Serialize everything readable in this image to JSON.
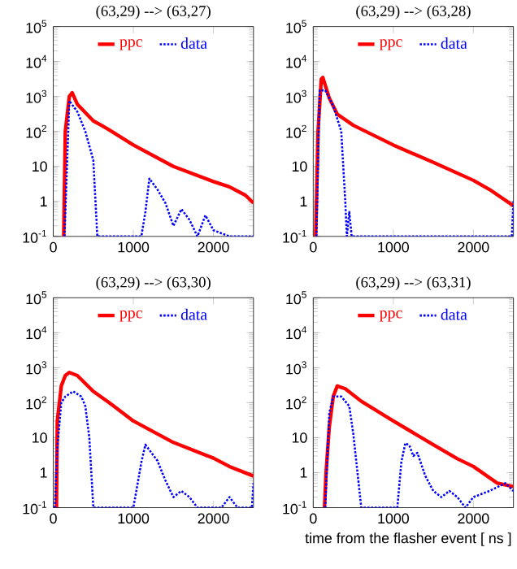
{
  "chart_data": [
    {
      "type": "line",
      "title": "(63,29) --> (63,27)",
      "log": "y",
      "legend": "top",
      "xlim": [
        0,
        2500
      ],
      "ylim": [
        0.1,
        100000
      ],
      "xticks": [
        0,
        1000,
        2000
      ],
      "yticks": [
        {
          "value": 0.1,
          "label": "10$^{-1}$"
        },
        1,
        10,
        {
          "value": 100,
          "label": "10$^{2}$"
        },
        {
          "value": 1000,
          "label": "10$^{3}$"
        },
        {
          "value": 10000,
          "label": "10$^{4}$"
        },
        {
          "value": 100000,
          "label": "10$^{5}$"
        }
      ],
      "series": [
        {
          "name": "ppc",
          "color": "#ff0000",
          "line_style": "solid",
          "x": [
            130,
            150,
            200,
            236,
            300,
            500,
            600,
            700,
            1000,
            1500,
            2000,
            2200,
            2400,
            2500
          ],
          "values": [
            0.1,
            100,
            1000,
            1280,
            600,
            200,
            150,
            110,
            41,
            10,
            3.7,
            2.6,
            1.5,
            0.9
          ]
        },
        {
          "name": "data",
          "color": "#0000ff",
          "line_style": "dotted",
          "x": [
            140,
            200,
            300,
            400,
            500,
            550,
            1100,
            1150,
            1200,
            1300,
            1400,
            1500,
            1600,
            1700,
            1800,
            1900,
            2000,
            2200,
            2500
          ],
          "values": [
            0.1,
            750,
            370,
            100,
            15,
            0.1,
            0.1,
            0.5,
            4.5,
            2.2,
            0.9,
            0.2,
            0.6,
            0.3,
            0.1,
            0.4,
            0.15,
            0.1,
            0.1
          ]
        }
      ]
    },
    {
      "type": "line",
      "title": "(63,29) --> (63,28)",
      "log": "y",
      "legend": "top",
      "xlim": [
        0,
        2500
      ],
      "ylim": [
        0.1,
        100000
      ],
      "xticks": [
        0,
        1000,
        2000
      ],
      "yticks": [
        {
          "value": 0.1,
          "label": "10$^{-1}$"
        },
        1,
        10,
        {
          "value": 100,
          "label": "10$^{2}$"
        },
        {
          "value": 1000,
          "label": "10$^{3}$"
        },
        {
          "value": 10000,
          "label": "10$^{4}$"
        },
        {
          "value": 100000,
          "label": "10$^{5}$"
        }
      ],
      "series": [
        {
          "name": "ppc",
          "color": "#ff0000",
          "line_style": "solid",
          "x": [
            30,
            60,
            100,
            120,
            200,
            300,
            500,
            1000,
            1500,
            2000,
            2200,
            2500
          ],
          "values": [
            0.1,
            100,
            3100,
            3500,
            900,
            310,
            150,
            41,
            13,
            4,
            2.2,
            0.75
          ]
        },
        {
          "name": "data",
          "color": "#0000ff",
          "line_style": "dotted",
          "x": [
            40,
            80,
            150,
            250,
            350,
            400,
            420,
            450,
            480,
            2480,
            2500
          ],
          "values": [
            0.1,
            1500,
            1500,
            530,
            100,
            1,
            0.1,
            0.5,
            0.1,
            0.1,
            1
          ]
        }
      ]
    },
    {
      "type": "line",
      "title": "(63,29) --> (63,30)",
      "log": "y",
      "legend": "top",
      "xlim": [
        0,
        2500
      ],
      "ylim": [
        0.1,
        100000
      ],
      "xticks": [
        0,
        1000,
        2000
      ],
      "yticks": [
        {
          "value": 0.1,
          "label": "10$^{-1}$"
        },
        1,
        10,
        {
          "value": 100,
          "label": "10$^{2}$"
        },
        {
          "value": 1000,
          "label": "10$^{3}$"
        },
        {
          "value": 10000,
          "label": "10$^{4}$"
        },
        {
          "value": 100000,
          "label": "10$^{5}$"
        }
      ],
      "series": [
        {
          "name": "ppc",
          "color": "#ff0000",
          "line_style": "solid",
          "x": [
            40,
            50,
            100,
            150,
            200,
            300,
            500,
            700,
            1000,
            1500,
            2000,
            2200,
            2500
          ],
          "values": [
            0.1,
            30,
            300,
            600,
            730,
            600,
            210,
            100,
            30,
            7.3,
            2.6,
            1.5,
            0.8
          ]
        },
        {
          "name": "data",
          "color": "#0000ff",
          "line_style": "dotted",
          "x": [
            20,
            50,
            100,
            150,
            250,
            350,
            400,
            450,
            500,
            1000,
            1050,
            1100,
            1150,
            1300,
            1400,
            1500,
            1600,
            1700,
            1800,
            2100,
            2200,
            2300,
            2480,
            2500
          ],
          "values": [
            0.1,
            5,
            100,
            150,
            210,
            150,
            80,
            10,
            0.1,
            0.1,
            0.44,
            2,
            6.3,
            2.2,
            0.6,
            0.2,
            0.3,
            0.2,
            0.1,
            0.1,
            0.2,
            0.1,
            0.1,
            0.5
          ]
        }
      ]
    },
    {
      "type": "line",
      "title": "(63,29) --> (63,31)",
      "xlabel": "time from the flasher event [ ns ]",
      "log": "y",
      "legend": "top",
      "xlim": [
        0,
        2500
      ],
      "ylim": [
        0.1,
        100000
      ],
      "xticks": [
        0,
        1000,
        2000
      ],
      "yticks": [
        {
          "value": 0.1,
          "label": "10$^{-1}$"
        },
        1,
        10,
        {
          "value": 100,
          "label": "10$^{2}$"
        },
        {
          "value": 1000,
          "label": "10$^{3}$"
        },
        {
          "value": 10000,
          "label": "10$^{4}$"
        },
        {
          "value": 100000,
          "label": "10$^{5}$"
        }
      ],
      "series": [
        {
          "name": "ppc",
          "color": "#ff0000",
          "line_style": "solid",
          "x": [
            140,
            160,
            200,
            250,
            300,
            400,
            600,
            1000,
            1500,
            1800,
            2000,
            2300,
            2500
          ],
          "values": [
            0.1,
            1,
            20,
            150,
            300,
            250,
            110,
            30,
            6.3,
            2.5,
            1.5,
            0.5,
            0.4
          ]
        },
        {
          "name": "data",
          "color": "#0000ff",
          "line_style": "dotted",
          "x": [
            150,
            200,
            250,
            350,
            450,
            500,
            600,
            1050,
            1100,
            1150,
            1200,
            1250,
            1300,
            1400,
            1500,
            1600,
            1700,
            1800,
            1900,
            2000,
            2200,
            2400,
            2500
          ],
          "values": [
            0.1,
            50,
            150,
            150,
            80,
            13,
            0.1,
            0.1,
            2,
            7,
            6,
            3,
            3.7,
            0.8,
            0.3,
            0.2,
            0.3,
            0.2,
            0.1,
            0.2,
            0.3,
            0.5,
            0.3
          ]
        }
      ]
    }
  ]
}
